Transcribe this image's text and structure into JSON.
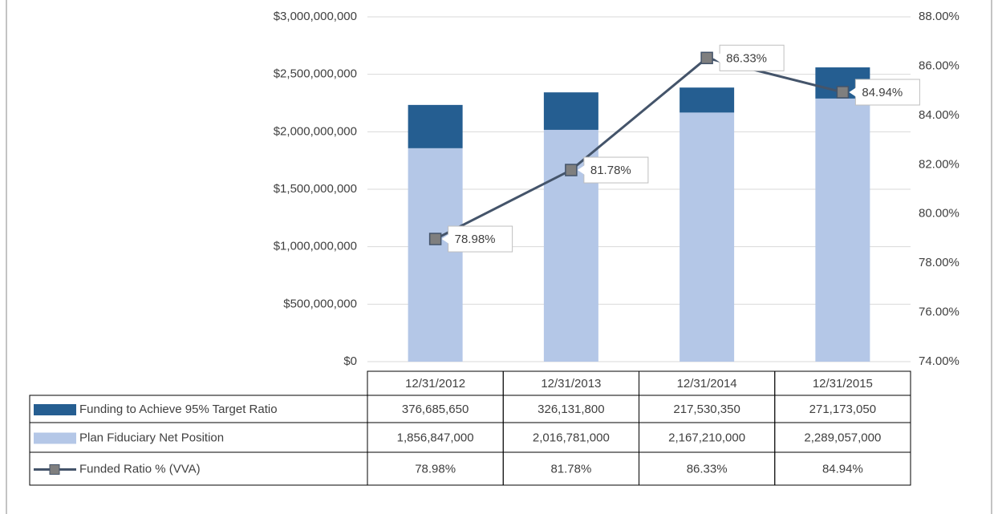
{
  "chart_data": {
    "type": "bar",
    "categories": [
      "12/31/2012",
      "12/31/2013",
      "12/31/2014",
      "12/31/2015"
    ],
    "series": [
      {
        "name": "Funding to Achieve 95% Target Ratio",
        "color": "#255e91",
        "type": "bar",
        "values": [
          376685650,
          326131800,
          217530350,
          271173050
        ],
        "value_labels": [
          "376,685,650",
          "326,131,800",
          "217,530,350",
          "271,173,050"
        ]
      },
      {
        "name": "Plan Fiduciary Net Position",
        "color": "#b4c7e7",
        "type": "bar",
        "values": [
          1856847000,
          2016781000,
          2167210000,
          2289057000
        ],
        "value_labels": [
          "1,856,847,000",
          "2,016,781,000",
          "2,167,210,000",
          "2,289,057,000"
        ]
      },
      {
        "name": "Funded Ratio % (VVA)",
        "color": "#44546a",
        "marker_color": "#7f7f7f",
        "type": "line",
        "axis": "y2",
        "values": [
          78.98,
          81.78,
          86.33,
          84.94
        ],
        "value_labels": [
          "78.98%",
          "81.78%",
          "86.33%",
          "84.94%"
        ]
      }
    ],
    "stacked": true,
    "ylim": [
      0,
      3000000000
    ],
    "yticks": [
      {
        "value": 0,
        "label": "$0"
      },
      {
        "value": 500000000,
        "label": "$500,000,000"
      },
      {
        "value": 1000000000,
        "label": "$1,000,000,000"
      },
      {
        "value": 1500000000,
        "label": "$1,500,000,000"
      },
      {
        "value": 2000000000,
        "label": "$2,000,000,000"
      },
      {
        "value": 2500000000,
        "label": "$2,500,000,000"
      },
      {
        "value": 3000000000,
        "label": "$3,000,000,000"
      }
    ],
    "y2lim": [
      74,
      88
    ],
    "y2ticks": [
      {
        "value": 74,
        "label": "74.00%"
      },
      {
        "value": 76,
        "label": "76.00%"
      },
      {
        "value": 78,
        "label": "78.00%"
      },
      {
        "value": 80,
        "label": "80.00%"
      },
      {
        "value": 82,
        "label": "82.00%"
      },
      {
        "value": 84,
        "label": "84.00%"
      },
      {
        "value": 86,
        "label": "86.00%"
      },
      {
        "value": 88,
        "label": "88.00%"
      }
    ],
    "grid": true,
    "data_table": true
  }
}
